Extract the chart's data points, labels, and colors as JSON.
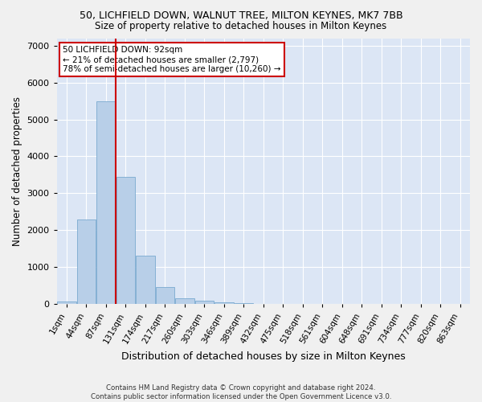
{
  "title_line1": "50, LICHFIELD DOWN, WALNUT TREE, MILTON KEYNES, MK7 7BB",
  "title_line2": "Size of property relative to detached houses in Milton Keynes",
  "xlabel": "Distribution of detached houses by size in Milton Keynes",
  "ylabel": "Number of detached properties",
  "footer_line1": "Contains HM Land Registry data © Crown copyright and database right 2024.",
  "footer_line2": "Contains public sector information licensed under the Open Government Licence v3.0.",
  "annotation_line1": "50 LICHFIELD DOWN: 92sqm",
  "annotation_line2": "← 21% of detached houses are smaller (2,797)",
  "annotation_line3": "78% of semi-detached houses are larger (10,260) →",
  "bar_color": "#b8cfe8",
  "bar_edge_color": "#7aaad0",
  "background_color": "#dce6f5",
  "fig_background_color": "#f0f0f0",
  "red_line_color": "#cc0000",
  "annotation_box_color": "#ffffff",
  "annotation_box_edge": "#cc0000",
  "grid_color": "#ffffff",
  "categories": [
    "1sqm",
    "44sqm",
    "87sqm",
    "131sqm",
    "174sqm",
    "217sqm",
    "260sqm",
    "303sqm",
    "346sqm",
    "389sqm",
    "432sqm",
    "475sqm",
    "518sqm",
    "561sqm",
    "604sqm",
    "648sqm",
    "691sqm",
    "734sqm",
    "777sqm",
    "820sqm",
    "863sqm"
  ],
  "values": [
    70,
    2280,
    5480,
    3450,
    1300,
    470,
    155,
    90,
    55,
    30,
    10,
    5,
    3,
    2,
    1,
    1,
    0,
    0,
    0,
    0,
    0
  ],
  "ylim": [
    0,
    7200
  ],
  "yticks": [
    0,
    1000,
    2000,
    3000,
    4000,
    5000,
    6000,
    7000
  ],
  "red_line_bin_index": 2,
  "property_sqm": 92
}
